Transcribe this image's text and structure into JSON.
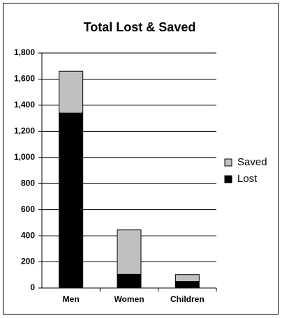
{
  "chart_data": {
    "type": "stacked-bar",
    "title": "Total Lost & Saved",
    "categories": [
      "Men",
      "Women",
      "Children"
    ],
    "series": [
      {
        "name": "Lost",
        "color": "#000000",
        "values": [
          1340,
          105,
          50
        ]
      },
      {
        "name": "Saved",
        "color": "#c0c0c0",
        "values": [
          320,
          340,
          53
        ]
      }
    ],
    "ylim": [
      0,
      1800
    ],
    "yticks": [
      0,
      200,
      400,
      600,
      800,
      {
        "value": 1000,
        "label": "1,000"
      },
      {
        "value": 1200,
        "label": "1,200"
      },
      {
        "value": 1400,
        "label": "1,400"
      },
      {
        "value": 1600,
        "label": "1,600"
      },
      {
        "value": 1800,
        "label": "1,800"
      }
    ],
    "grid": true,
    "legend": "right"
  }
}
